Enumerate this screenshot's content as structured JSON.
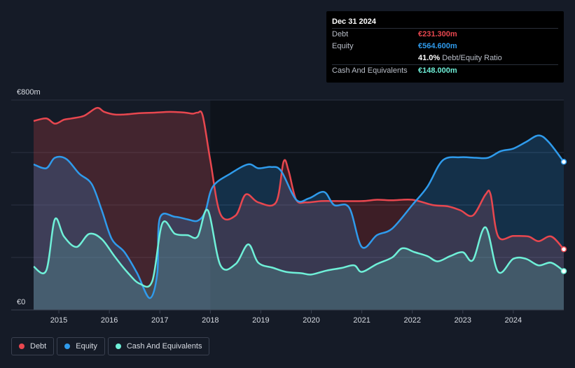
{
  "tooltip": {
    "date": "Dec 31 2024",
    "rows": [
      {
        "label": "Debt",
        "value": "€231.300m",
        "color": "#e8474f"
      },
      {
        "label": "Equity",
        "value": "€564.600m",
        "color": "#2f9bec"
      },
      {
        "label": "",
        "value": "41.0%",
        "sub": "Debt/Equity Ratio",
        "color": "#ffffff"
      },
      {
        "label": "Cash And Equivalents",
        "value": "€148.000m",
        "color": "#6ff0d8"
      }
    ]
  },
  "legend": [
    {
      "label": "Debt",
      "color": "#e8474f"
    },
    {
      "label": "Equity",
      "color": "#2f9bec"
    },
    {
      "label": "Cash And Equivalents",
      "color": "#6ff0d8"
    }
  ],
  "chart_data": {
    "type": "area",
    "ylim": [
      0,
      800
    ],
    "y_tick_labels": [
      {
        "value": 800,
        "label": "€800m"
      },
      {
        "value": 0,
        "label": "€0"
      }
    ],
    "x_ticks": [
      2015,
      2016,
      2017,
      2018,
      2019,
      2020,
      2021,
      2022,
      2023,
      2024
    ],
    "xlim": [
      2014.5,
      2025.0
    ],
    "highlight_start": 2018.0,
    "series": [
      {
        "name": "Debt",
        "color": "#e8474f",
        "points": [
          [
            2014.5,
            720
          ],
          [
            2014.75,
            730
          ],
          [
            2014.92,
            710
          ],
          [
            2015.1,
            725
          ],
          [
            2015.25,
            730
          ],
          [
            2015.5,
            740
          ],
          [
            2015.75,
            770
          ],
          [
            2015.9,
            755
          ],
          [
            2016.1,
            745
          ],
          [
            2016.3,
            745
          ],
          [
            2016.6,
            750
          ],
          [
            2016.9,
            752
          ],
          [
            2017.2,
            755
          ],
          [
            2017.5,
            752
          ],
          [
            2017.65,
            748
          ],
          [
            2017.75,
            752
          ],
          [
            2017.85,
            740
          ],
          [
            2018.0,
            570
          ],
          [
            2018.2,
            365
          ],
          [
            2018.5,
            360
          ],
          [
            2018.7,
            440
          ],
          [
            2018.95,
            410
          ],
          [
            2019.3,
            410
          ],
          [
            2019.45,
            565
          ],
          [
            2019.55,
            530
          ],
          [
            2019.7,
            420
          ],
          [
            2019.9,
            410
          ],
          [
            2020.2,
            415
          ],
          [
            2020.5,
            415
          ],
          [
            2021.0,
            415
          ],
          [
            2021.3,
            420
          ],
          [
            2021.6,
            418
          ],
          [
            2022.0,
            420
          ],
          [
            2022.4,
            400
          ],
          [
            2022.7,
            395
          ],
          [
            2022.95,
            380
          ],
          [
            2023.2,
            360
          ],
          [
            2023.45,
            440
          ],
          [
            2023.55,
            440
          ],
          [
            2023.7,
            280
          ],
          [
            2024.0,
            282
          ],
          [
            2024.3,
            280
          ],
          [
            2024.5,
            262
          ],
          [
            2024.75,
            280
          ],
          [
            2025.0,
            231.3
          ]
        ]
      },
      {
        "name": "Equity",
        "color": "#2f9bec",
        "points": [
          [
            2014.5,
            555
          ],
          [
            2014.75,
            540
          ],
          [
            2014.92,
            580
          ],
          [
            2015.15,
            575
          ],
          [
            2015.4,
            520
          ],
          [
            2015.65,
            480
          ],
          [
            2015.85,
            380
          ],
          [
            2016.05,
            270
          ],
          [
            2016.3,
            220
          ],
          [
            2016.55,
            140
          ],
          [
            2016.8,
            45
          ],
          [
            2016.95,
            140
          ],
          [
            2017.0,
            350
          ],
          [
            2017.3,
            355
          ],
          [
            2017.55,
            345
          ],
          [
            2017.75,
            340
          ],
          [
            2017.9,
            375
          ],
          [
            2018.05,
            470
          ],
          [
            2018.4,
            520
          ],
          [
            2018.75,
            555
          ],
          [
            2018.95,
            540
          ],
          [
            2019.2,
            545
          ],
          [
            2019.4,
            530
          ],
          [
            2019.7,
            420
          ],
          [
            2019.95,
            425
          ],
          [
            2020.25,
            450
          ],
          [
            2020.45,
            400
          ],
          [
            2020.75,
            390
          ],
          [
            2021.0,
            240
          ],
          [
            2021.3,
            285
          ],
          [
            2021.6,
            310
          ],
          [
            2022.0,
            400
          ],
          [
            2022.3,
            470
          ],
          [
            2022.6,
            570
          ],
          [
            2022.95,
            582
          ],
          [
            2023.25,
            580
          ],
          [
            2023.5,
            580
          ],
          [
            2023.75,
            605
          ],
          [
            2024.0,
            615
          ],
          [
            2024.25,
            640
          ],
          [
            2024.5,
            665
          ],
          [
            2024.7,
            640
          ],
          [
            2025.0,
            564.6
          ]
        ]
      },
      {
        "name": "Cash And Equivalents",
        "color": "#6ff0d8",
        "points": [
          [
            2014.5,
            165
          ],
          [
            2014.75,
            150
          ],
          [
            2014.92,
            345
          ],
          [
            2015.1,
            280
          ],
          [
            2015.35,
            240
          ],
          [
            2015.6,
            290
          ],
          [
            2015.85,
            270
          ],
          [
            2016.1,
            205
          ],
          [
            2016.35,
            145
          ],
          [
            2016.6,
            100
          ],
          [
            2016.85,
            110
          ],
          [
            2017.05,
            330
          ],
          [
            2017.3,
            290
          ],
          [
            2017.55,
            285
          ],
          [
            2017.75,
            280
          ],
          [
            2017.95,
            380
          ],
          [
            2018.2,
            170
          ],
          [
            2018.5,
            175
          ],
          [
            2018.75,
            250
          ],
          [
            2018.95,
            180
          ],
          [
            2019.25,
            160
          ],
          [
            2019.5,
            145
          ],
          [
            2019.8,
            140
          ],
          [
            2020.0,
            135
          ],
          [
            2020.3,
            150
          ],
          [
            2020.6,
            160
          ],
          [
            2020.85,
            170
          ],
          [
            2021.0,
            145
          ],
          [
            2021.3,
            175
          ],
          [
            2021.6,
            200
          ],
          [
            2021.8,
            235
          ],
          [
            2022.05,
            220
          ],
          [
            2022.3,
            205
          ],
          [
            2022.5,
            185
          ],
          [
            2022.75,
            205
          ],
          [
            2023.0,
            220
          ],
          [
            2023.2,
            190
          ],
          [
            2023.45,
            315
          ],
          [
            2023.7,
            145
          ],
          [
            2024.0,
            195
          ],
          [
            2024.25,
            195
          ],
          [
            2024.5,
            170
          ],
          [
            2024.75,
            180
          ],
          [
            2025.0,
            148
          ]
        ]
      }
    ]
  }
}
